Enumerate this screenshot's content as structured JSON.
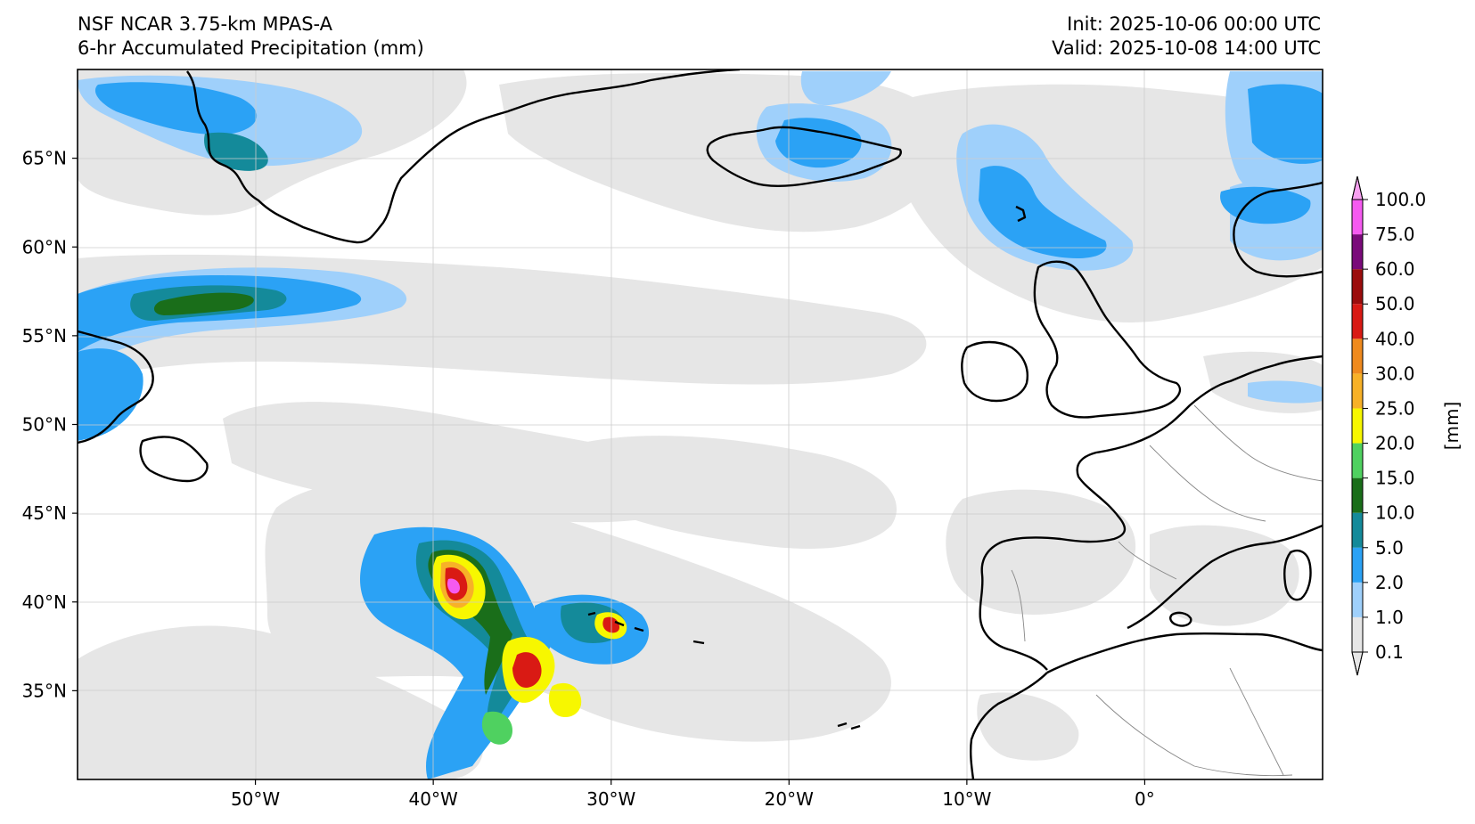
{
  "header": {
    "model_title": "NSF NCAR 3.75-km MPAS-A",
    "field_title": "6-hr Accumulated Precipitation (mm)",
    "init_time": "Init: 2025-10-06 00:00 UTC",
    "valid_time": "Valid: 2025-10-08 14:00 UTC"
  },
  "map": {
    "lon_range": [
      -60,
      10
    ],
    "lat_range": [
      30,
      70
    ],
    "lat_ticks": [
      {
        "value": 65,
        "label": "65°N"
      },
      {
        "value": 60,
        "label": "60°N"
      },
      {
        "value": 55,
        "label": "55°N"
      },
      {
        "value": 50,
        "label": "50°N"
      },
      {
        "value": 45,
        "label": "45°N"
      },
      {
        "value": 40,
        "label": "40°N"
      },
      {
        "value": 35,
        "label": "35°N"
      }
    ],
    "lon_ticks": [
      {
        "value": -50,
        "label": "50°W"
      },
      {
        "value": -40,
        "label": "40°W"
      },
      {
        "value": -30,
        "label": "30°W"
      },
      {
        "value": -20,
        "label": "20°W"
      },
      {
        "value": -10,
        "label": "10°W"
      },
      {
        "value": 0,
        "label": "0°"
      }
    ],
    "gridlines": true
  },
  "colorbar": {
    "unit_label": "[mm]",
    "levels": [
      {
        "label": "0.1",
        "color": "#e6e6e6"
      },
      {
        "label": "1.0",
        "color": "#9fd0fb"
      },
      {
        "label": "2.0",
        "color": "#2ba2f5"
      },
      {
        "label": "5.0",
        "color": "#148a9a"
      },
      {
        "label": "10.0",
        "color": "#1a6e1a"
      },
      {
        "label": "15.0",
        "color": "#4fd160"
      },
      {
        "label": "20.0",
        "color": "#f7f700"
      },
      {
        "label": "25.0",
        "color": "#f7b128"
      },
      {
        "label": "30.0",
        "color": "#ef8a1e"
      },
      {
        "label": "40.0",
        "color": "#d91a14"
      },
      {
        "label": "50.0",
        "color": "#9b0d0d"
      },
      {
        "label": "60.0",
        "color": "#7a0a7a"
      },
      {
        "label": "75.0",
        "color": "#f55af0"
      },
      {
        "label": "100.0",
        "color": "#f7a0f0"
      }
    ]
  }
}
